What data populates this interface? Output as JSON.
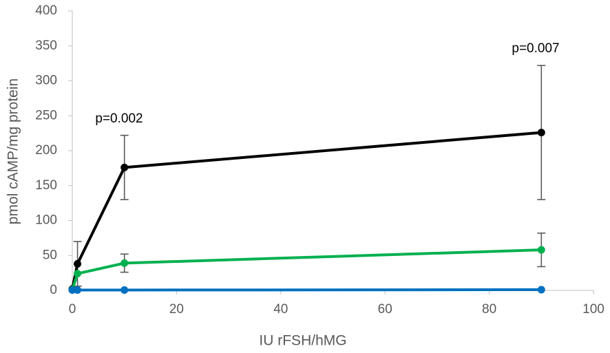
{
  "chart_data": {
    "type": "line",
    "x": [
      0,
      1,
      10,
      90
    ],
    "series": [
      {
        "color": "#000000",
        "values": [
          2,
          38,
          176,
          226
        ],
        "errors": [
          null,
          32,
          46,
          96
        ]
      },
      {
        "color": "#00b050",
        "values": [
          1,
          24,
          39,
          58
        ],
        "errors": [
          null,
          null,
          13,
          24
        ]
      },
      {
        "color": "#0070c0",
        "values": [
          0.5,
          0.5,
          0.5,
          1
        ]
      }
    ],
    "error_color": "#595959",
    "xlabel": "IU rFSH/hMG",
    "ylabel": "pmol cAMP/mg protein",
    "xlim": [
      0,
      100
    ],
    "xticks": [
      0,
      20,
      40,
      60,
      80,
      100
    ],
    "ylim": [
      0,
      400
    ],
    "yticks": [
      0,
      50,
      100,
      150,
      200,
      250,
      300,
      350,
      400
    ],
    "annotations": [
      "p=0.002",
      "p=0.007"
    ],
    "grid": false
  }
}
